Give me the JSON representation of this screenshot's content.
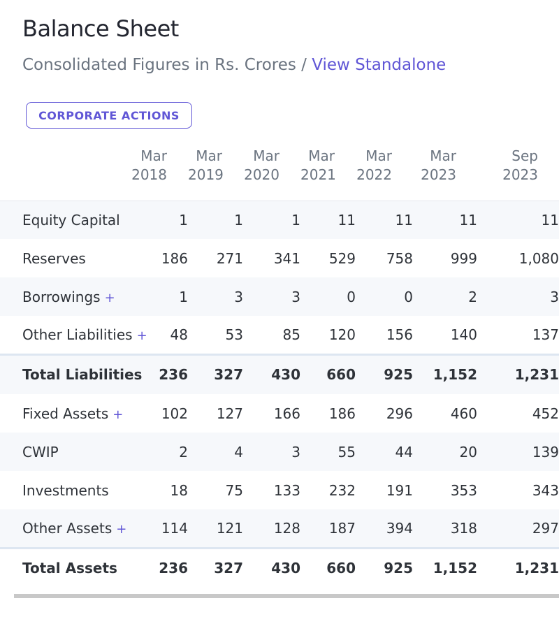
{
  "header": {
    "title": "Balance Sheet",
    "subtitle_text": "Consolidated Figures in Rs. Crores / ",
    "subtitle_link": "View Standalone"
  },
  "actions": {
    "corporate_actions_label": "CORPORATE ACTIONS"
  },
  "table": {
    "columns": [
      {
        "month": "Mar",
        "year": "2018"
      },
      {
        "month": "Mar",
        "year": "2019"
      },
      {
        "month": "Mar",
        "year": "2020"
      },
      {
        "month": "Mar",
        "year": "2021"
      },
      {
        "month": "Mar",
        "year": "2022"
      },
      {
        "month": "Mar",
        "year": "2023"
      },
      {
        "month": "Sep",
        "year": "2023"
      }
    ],
    "plus_symbol": "+",
    "rows": [
      {
        "label": "Equity Capital",
        "values": [
          "1",
          "1",
          "1",
          "11",
          "11",
          "11",
          "11"
        ]
      },
      {
        "label": "Reserves",
        "values": [
          "186",
          "271",
          "341",
          "529",
          "758",
          "999",
          "1,080"
        ]
      },
      {
        "label": "Borrowings",
        "values": [
          "1",
          "3",
          "3",
          "0",
          "0",
          "2",
          "3"
        ]
      },
      {
        "label": "Other Liabilities",
        "values": [
          "48",
          "53",
          "85",
          "120",
          "156",
          "140",
          "137"
        ]
      },
      {
        "label": "Total Liabilities",
        "values": [
          "236",
          "327",
          "430",
          "660",
          "925",
          "1,152",
          "1,231"
        ]
      },
      {
        "label": "Fixed Assets",
        "values": [
          "102",
          "127",
          "166",
          "186",
          "296",
          "460",
          "452"
        ]
      },
      {
        "label": "CWIP",
        "values": [
          "2",
          "4",
          "3",
          "55",
          "44",
          "20",
          "139"
        ]
      },
      {
        "label": "Investments",
        "values": [
          "18",
          "75",
          "133",
          "232",
          "191",
          "353",
          "343"
        ]
      },
      {
        "label": "Other Assets",
        "values": [
          "114",
          "121",
          "128",
          "187",
          "394",
          "318",
          "297"
        ]
      },
      {
        "label": "Total Assets",
        "values": [
          "236",
          "327",
          "430",
          "660",
          "925",
          "1,152",
          "1,231"
        ]
      }
    ]
  },
  "colors": {
    "accent": "#6056d6",
    "row_shade": "#f6f8fb",
    "muted_text": "#6b7480"
  }
}
